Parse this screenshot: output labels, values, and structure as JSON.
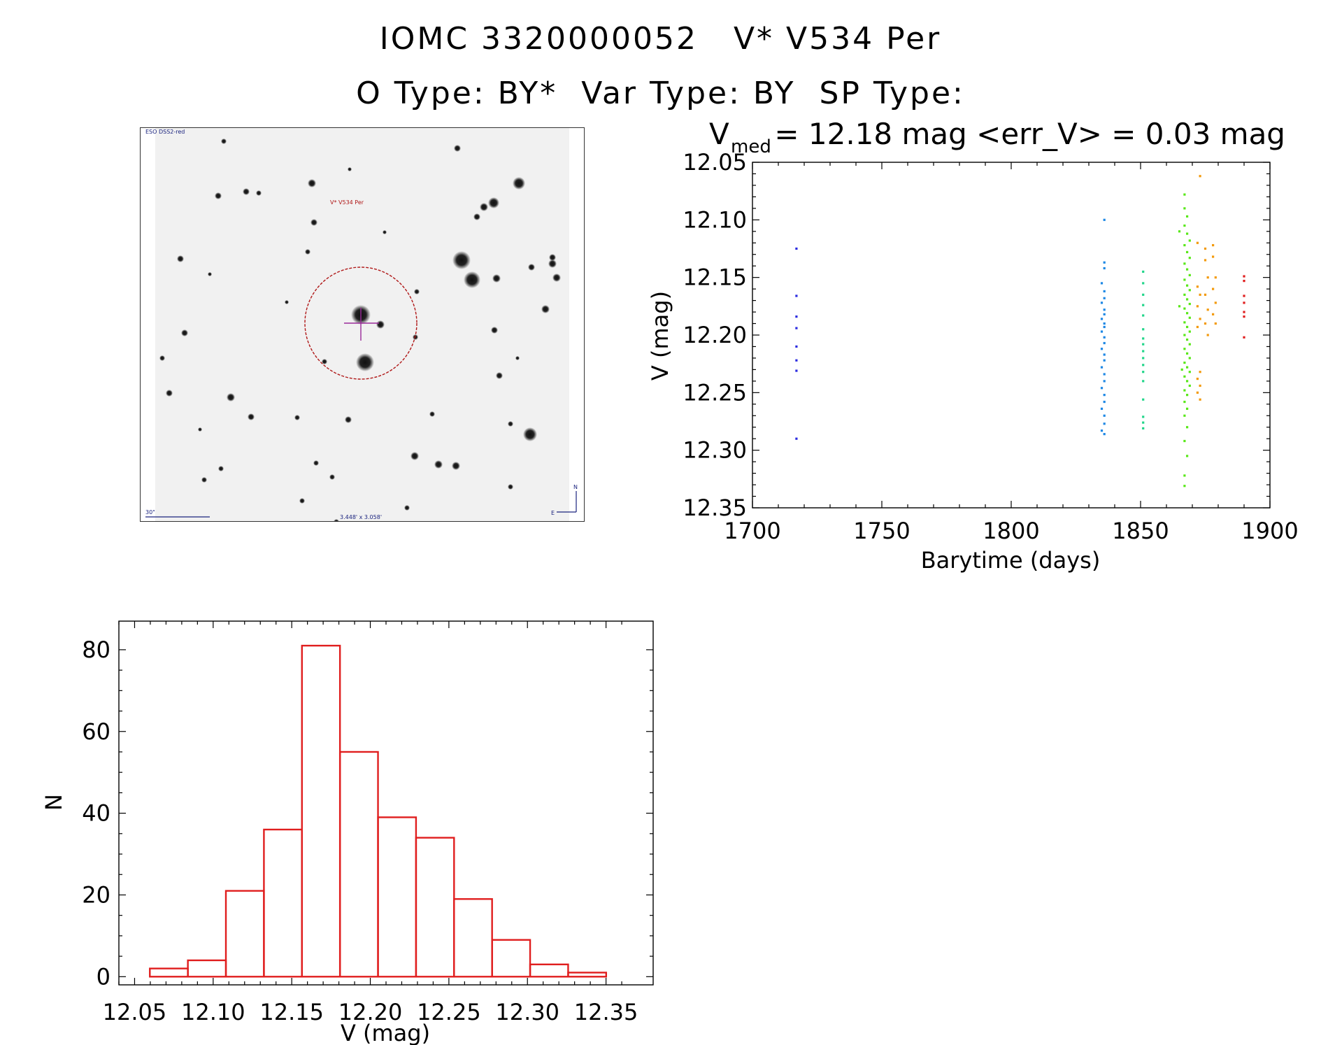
{
  "header": {
    "title_line1": "IOMC 3320000052   V* V534 Per",
    "title_line2": "O Type: BY*  Var Type: BY  SP Type:"
  },
  "finder_chart": {
    "survey_label": "ESO DSS2-red",
    "object_label": "V* V534 Per",
    "scale_label": "30\"",
    "fov_label": "3.448' x 3.058'",
    "north_label": "N",
    "east_label": "E"
  },
  "chart_data": [
    {
      "type": "scatter",
      "title_parts": {
        "v": "V",
        "sub": "med",
        "rest": " = 12.18 mag <err_V> = 0.03 mag"
      },
      "xlabel": "Barytime (days)",
      "ylabel": "V (mag)",
      "xlim": [
        1700,
        1900
      ],
      "ylim": [
        12.35,
        12.05
      ],
      "y_inverted": true,
      "xticks": [
        1700,
        1750,
        1800,
        1850,
        1900
      ],
      "yticks": [
        "12.05",
        "12.10",
        "12.15",
        "12.20",
        "12.25",
        "12.30",
        "12.35"
      ],
      "grid": false,
      "series": [
        {
          "color": "#2a2ae0",
          "points": [
            [
              1717,
              12.125
            ],
            [
              1717,
              12.166
            ],
            [
              1717,
              12.184
            ],
            [
              1717,
              12.194
            ],
            [
              1717,
              12.21
            ],
            [
              1717,
              12.222
            ],
            [
              1717,
              12.231
            ],
            [
              1717,
              12.29
            ]
          ]
        },
        {
          "color": "#1e88e5",
          "points": [
            [
              1836,
              12.1
            ],
            [
              1836,
              12.137
            ],
            [
              1836,
              12.142
            ],
            [
              1835,
              12.155
            ],
            [
              1836,
              12.162
            ],
            [
              1836,
              12.168
            ],
            [
              1835,
              12.172
            ],
            [
              1836,
              12.178
            ],
            [
              1836,
              12.182
            ],
            [
              1835,
              12.186
            ],
            [
              1836,
              12.19
            ],
            [
              1836,
              12.193
            ],
            [
              1835,
              12.197
            ],
            [
              1836,
              12.202
            ],
            [
              1836,
              12.207
            ],
            [
              1835,
              12.212
            ],
            [
              1836,
              12.217
            ],
            [
              1836,
              12.222
            ],
            [
              1835,
              12.228
            ],
            [
              1836,
              12.234
            ],
            [
              1836,
              12.24
            ],
            [
              1835,
              12.246
            ],
            [
              1836,
              12.252
            ],
            [
              1836,
              12.258
            ],
            [
              1835,
              12.264
            ],
            [
              1836,
              12.27
            ],
            [
              1836,
              12.277
            ],
            [
              1835,
              12.283
            ],
            [
              1836,
              12.286
            ]
          ]
        },
        {
          "color": "#22d68a",
          "points": [
            [
              1851,
              12.145
            ],
            [
              1851,
              12.155
            ],
            [
              1851,
              12.165
            ],
            [
              1851,
              12.174
            ],
            [
              1851,
              12.183
            ],
            [
              1851,
              12.195
            ],
            [
              1851,
              12.203
            ],
            [
              1851,
              12.208
            ],
            [
              1851,
              12.214
            ],
            [
              1851,
              12.22
            ],
            [
              1851,
              12.226
            ],
            [
              1851,
              12.232
            ],
            [
              1851,
              12.24
            ],
            [
              1851,
              12.256
            ],
            [
              1851,
              12.271
            ],
            [
              1851,
              12.276
            ],
            [
              1851,
              12.281
            ]
          ]
        },
        {
          "color": "#58e818",
          "points": [
            [
              1867,
              12.078
            ],
            [
              1867,
              12.09
            ],
            [
              1868,
              12.097
            ],
            [
              1867,
              12.105
            ],
            [
              1868,
              12.112
            ],
            [
              1869,
              12.118
            ],
            [
              1867,
              12.122
            ],
            [
              1868,
              12.128
            ],
            [
              1869,
              12.133
            ],
            [
              1867,
              12.138
            ],
            [
              1868,
              12.143
            ],
            [
              1869,
              12.148
            ],
            [
              1867,
              12.152
            ],
            [
              1868,
              12.157
            ],
            [
              1869,
              12.161
            ],
            [
              1867,
              12.165
            ],
            [
              1868,
              12.169
            ],
            [
              1869,
              12.173
            ],
            [
              1867,
              12.177
            ],
            [
              1868,
              12.181
            ],
            [
              1869,
              12.185
            ],
            [
              1867,
              12.189
            ],
            [
              1868,
              12.193
            ],
            [
              1869,
              12.197
            ],
            [
              1867,
              12.2
            ],
            [
              1868,
              12.204
            ],
            [
              1869,
              12.208
            ],
            [
              1867,
              12.212
            ],
            [
              1868,
              12.216
            ],
            [
              1869,
              12.22
            ],
            [
              1867,
              12.224
            ],
            [
              1868,
              12.228
            ],
            [
              1869,
              12.232
            ],
            [
              1867,
              12.236
            ],
            [
              1868,
              12.24
            ],
            [
              1869,
              12.244
            ],
            [
              1867,
              12.248
            ],
            [
              1868,
              12.252
            ],
            [
              1867,
              12.258
            ],
            [
              1868,
              12.264
            ],
            [
              1867,
              12.27
            ],
            [
              1868,
              12.28
            ],
            [
              1867,
              12.292
            ],
            [
              1868,
              12.305
            ],
            [
              1867,
              12.322
            ],
            [
              1867,
              12.331
            ],
            [
              1865,
              12.11
            ],
            [
              1865,
              12.175
            ],
            [
              1866,
              12.23
            ]
          ]
        },
        {
          "color": "#f39a0c",
          "points": [
            [
              1873,
              12.062
            ],
            [
              1872,
              12.12
            ],
            [
              1872,
              12.158
            ],
            [
              1873,
              12.165
            ],
            [
              1872,
              12.175
            ],
            [
              1873,
              12.186
            ],
            [
              1872,
              12.193
            ],
            [
              1873,
              12.232
            ],
            [
              1872,
              12.238
            ],
            [
              1873,
              12.244
            ],
            [
              1872,
              12.25
            ],
            [
              1873,
              12.256
            ],
            [
              1875,
              12.125
            ],
            [
              1875,
              12.135
            ],
            [
              1876,
              12.15
            ],
            [
              1875,
              12.165
            ],
            [
              1876,
              12.178
            ],
            [
              1875,
              12.19
            ],
            [
              1876,
              12.2
            ],
            [
              1878,
              12.122
            ],
            [
              1878,
              12.132
            ],
            [
              1879,
              12.15
            ],
            [
              1878,
              12.16
            ],
            [
              1879,
              12.172
            ],
            [
              1878,
              12.182
            ],
            [
              1879,
              12.19
            ]
          ]
        },
        {
          "color": "#e01e1e",
          "points": [
            [
              1890,
              12.149
            ],
            [
              1890,
              12.153
            ],
            [
              1890,
              12.166
            ],
            [
              1890,
              12.172
            ],
            [
              1890,
              12.18
            ],
            [
              1890,
              12.184
            ],
            [
              1890,
              12.202
            ]
          ]
        }
      ]
    },
    {
      "type": "bar",
      "xlabel": "V (mag)",
      "ylabel": "N",
      "xlim": [
        12.04,
        12.38
      ],
      "ylim": [
        -2,
        87
      ],
      "xticks": [
        "12.05",
        "12.10",
        "12.15",
        "12.20",
        "12.25",
        "12.30",
        "12.35"
      ],
      "yticks": [
        "0",
        "20",
        "40",
        "60",
        "80"
      ],
      "bar_color": "#e01e1e",
      "bin_edges": [
        12.0597,
        12.0839,
        12.1081,
        12.1323,
        12.1565,
        12.1807,
        12.2049,
        12.2291,
        12.2533,
        12.2775,
        12.3017,
        12.3259,
        12.3501
      ],
      "counts": [
        2,
        4,
        21,
        36,
        81,
        55,
        39,
        34,
        19,
        9,
        3,
        1
      ]
    }
  ]
}
